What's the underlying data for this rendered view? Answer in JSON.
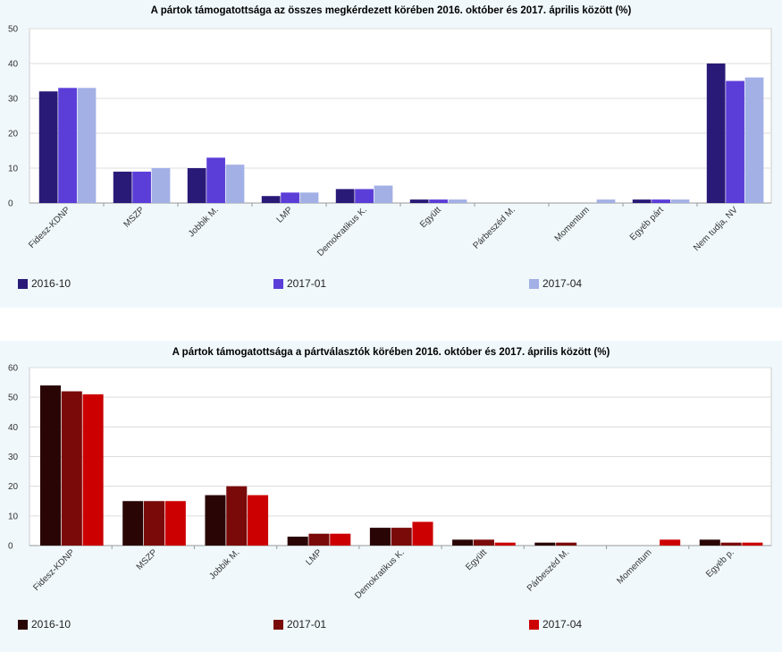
{
  "chart_data": [
    {
      "type": "bar",
      "title": "A pártok támogatottsága az összes megkérdezett körében 2016. október és 2017. április között (%)",
      "categories": [
        "Fidesz-KDNP",
        "MSZP",
        "Jobbik M.",
        "LMP",
        "Demokratikus K.",
        "Együtt",
        "Párbeszéd M.",
        "Momentum",
        "Egyéb párt",
        "Nem tudja, NV"
      ],
      "series": [
        {
          "name": "2016-10",
          "color": "#2a1a78",
          "values": [
            32,
            9,
            10,
            2,
            4,
            1,
            0,
            0,
            1,
            40
          ]
        },
        {
          "name": "2017-01",
          "color": "#5b3ed8",
          "values": [
            33,
            9,
            13,
            3,
            4,
            1,
            0,
            0,
            1,
            35
          ]
        },
        {
          "name": "2017-04",
          "color": "#a3b0e6",
          "values": [
            33,
            10,
            11,
            3,
            5,
            1,
            0,
            1,
            1,
            36
          ]
        }
      ],
      "ylim": [
        0,
        50
      ],
      "yticks": [
        0,
        10,
        20,
        30,
        40,
        50
      ],
      "grid": true,
      "legend": "bottom"
    },
    {
      "type": "bar",
      "title": "A pártok támogatottsága a pártválasztók körében 2016. október és 2017. április között (%)",
      "categories": [
        "Fidesz-KDNP",
        "MSZP",
        "Jobbik M.",
        "LMP",
        "Demokratikus K.",
        "Együtt",
        "Párbeszéd M.",
        "Momentum",
        "Egyéb p."
      ],
      "series": [
        {
          "name": "2016-10",
          "color": "#2a0505",
          "values": [
            54,
            15,
            17,
            3,
            6,
            2,
            1,
            0,
            2
          ]
        },
        {
          "name": "2017-01",
          "color": "#7a0a0a",
          "values": [
            52,
            15,
            20,
            4,
            6,
            2,
            1,
            0,
            1
          ]
        },
        {
          "name": "2017-04",
          "color": "#cc0000",
          "values": [
            51,
            15,
            17,
            4,
            8,
            1,
            0,
            2,
            1
          ]
        }
      ],
      "ylim": [
        0,
        60
      ],
      "yticks": [
        0,
        10,
        20,
        30,
        40,
        50,
        60
      ],
      "grid": true,
      "legend": "bottom"
    }
  ]
}
